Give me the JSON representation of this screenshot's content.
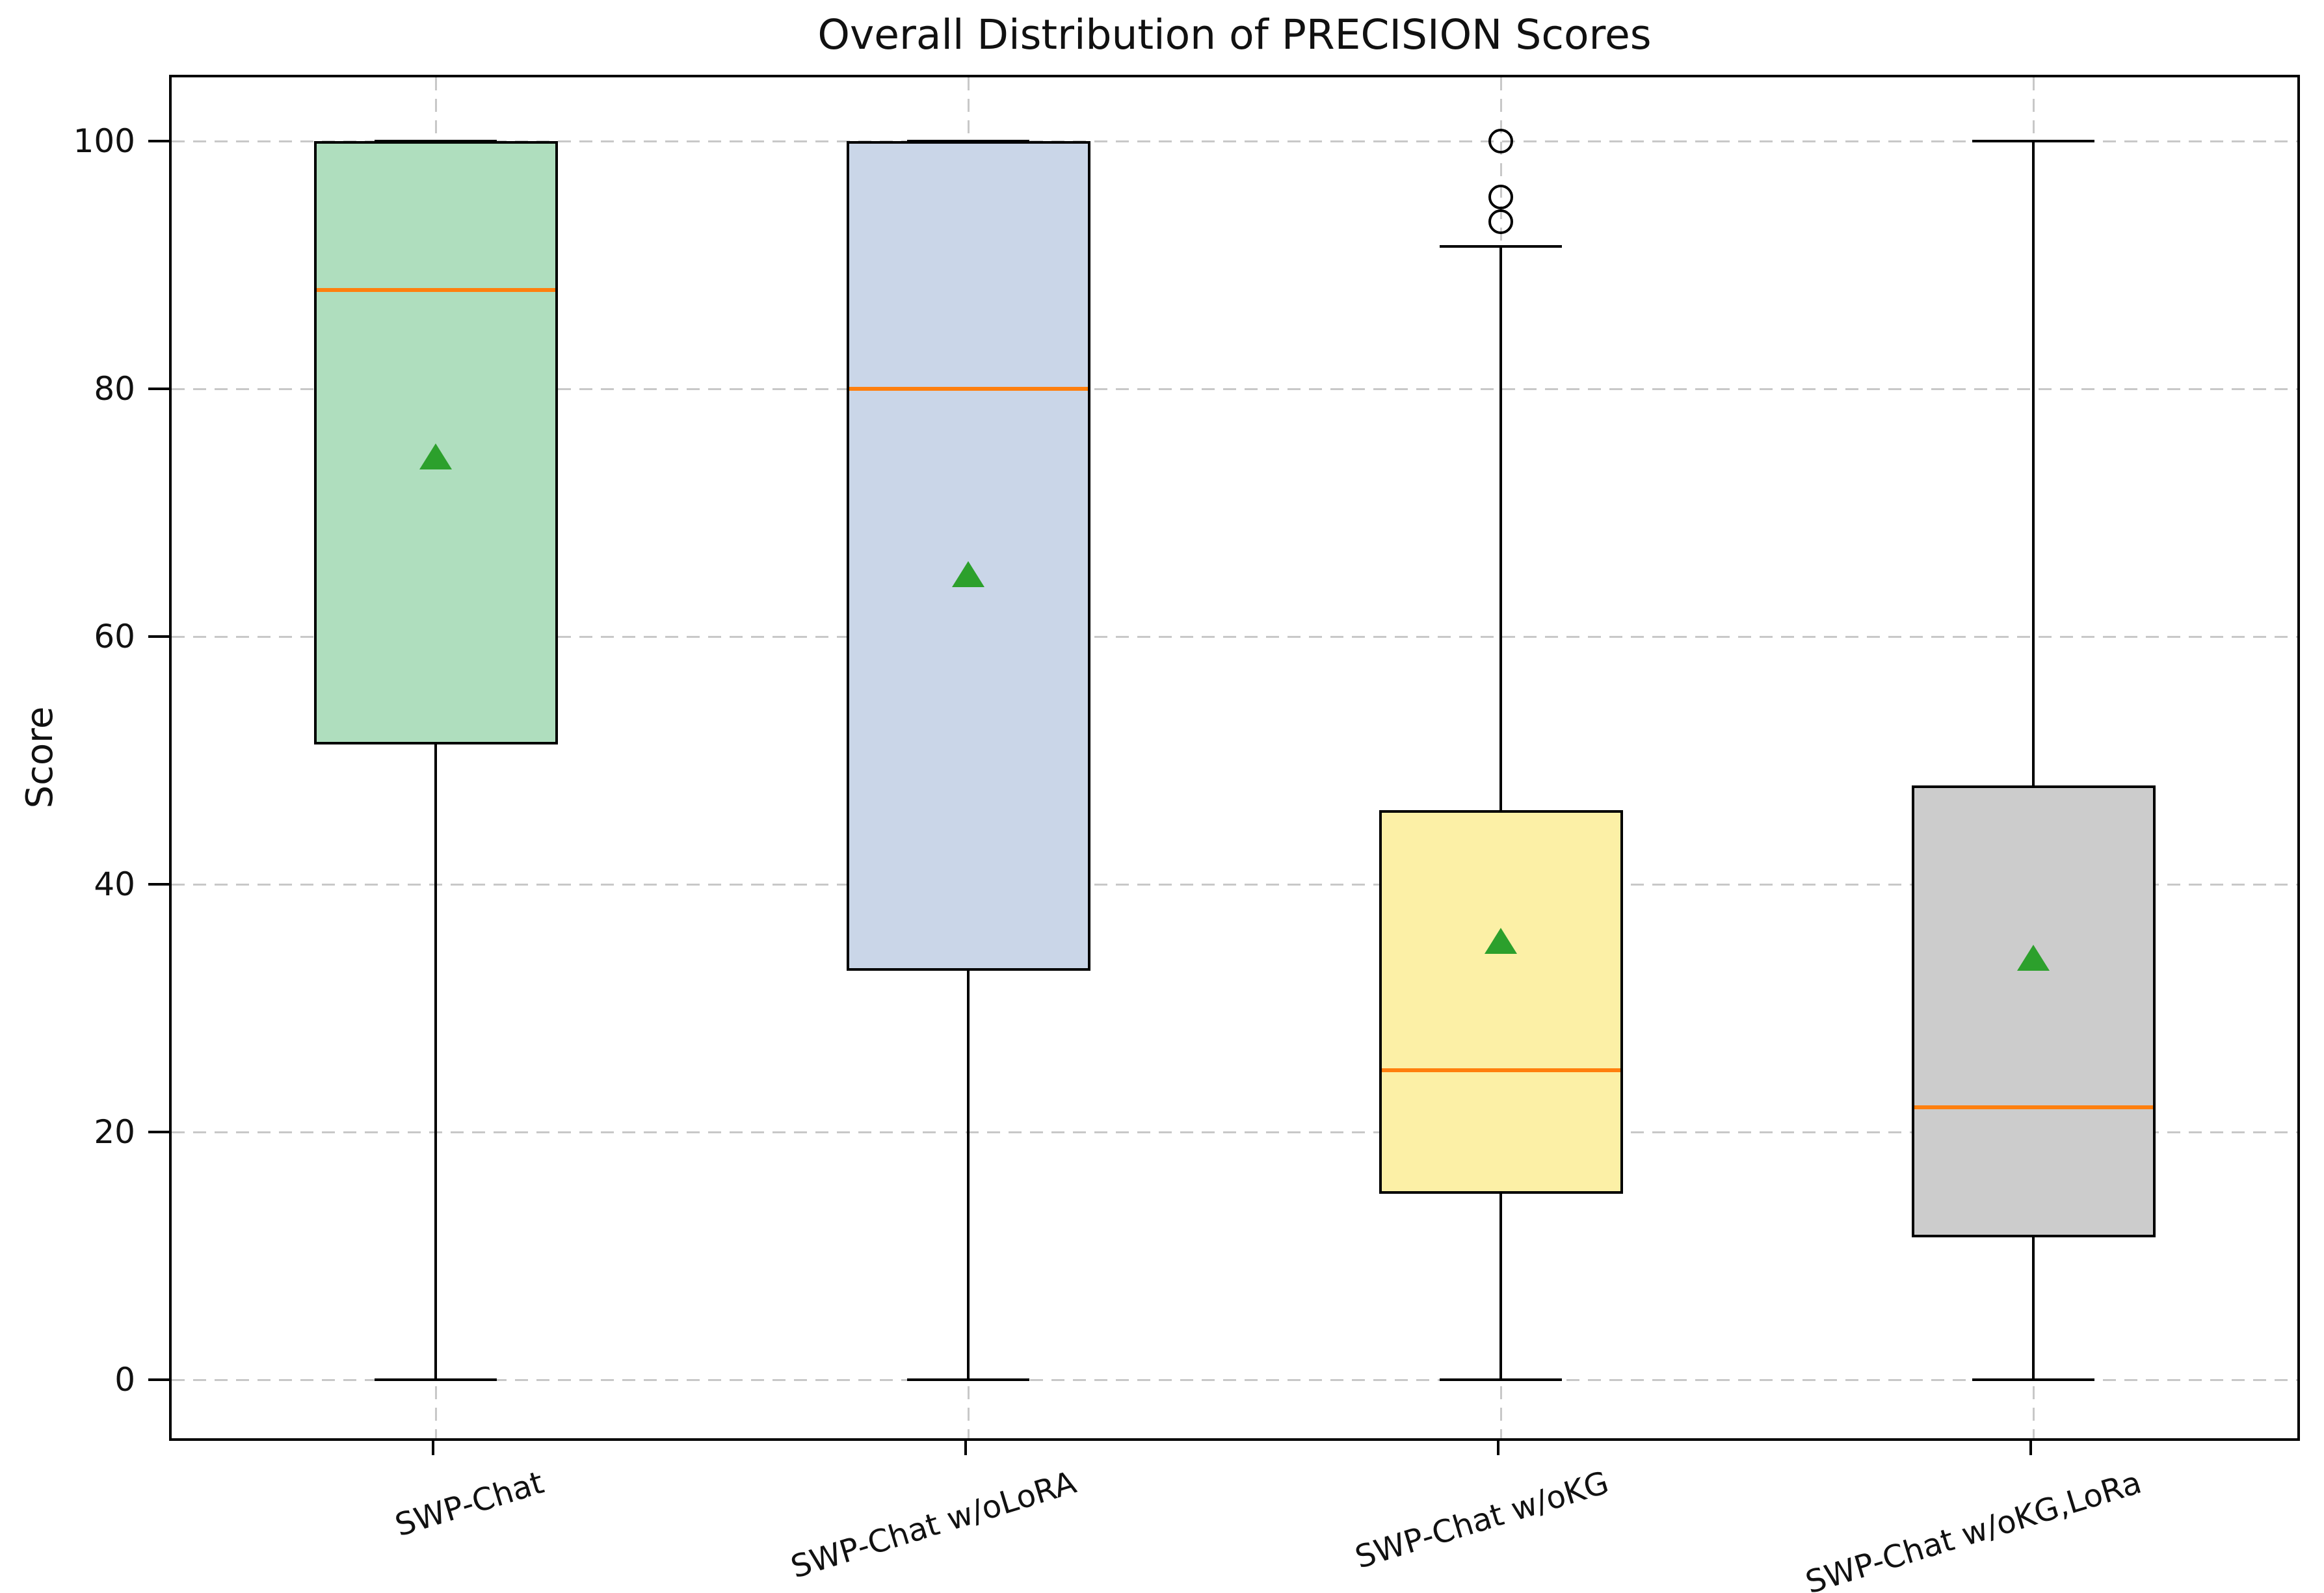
{
  "chart_data": {
    "type": "box",
    "title": "Overall Distribution of PRECISION Scores",
    "xlabel": "",
    "ylabel": "Score",
    "ylim": [
      -5,
      105
    ],
    "yticks": [
      0,
      20,
      40,
      60,
      80,
      100
    ],
    "grid": "dashed horizontal and vertical gridlines",
    "legend_position": "none",
    "categories": [
      "SWP-Chat",
      "SWP-Chat w/oLoRA",
      "SWP-Chat w/oKG",
      "SWP-Chat w/oKG,LoRa"
    ],
    "series": [
      {
        "name": "SWP-Chat",
        "fill_color": "#afdebe",
        "whisker_low": 0,
        "q1": 51.3,
        "median": 88,
        "q3": 100,
        "whisker_high": 100,
        "mean": 74.5,
        "outliers": []
      },
      {
        "name": "SWP-Chat w/oLoRA",
        "fill_color": "#cad6e8",
        "whisker_low": 0,
        "q1": 33,
        "median": 80,
        "q3": 100,
        "whisker_high": 100,
        "mean": 65,
        "outliers": []
      },
      {
        "name": "SWP-Chat w/oKG",
        "fill_color": "#fcf0a6",
        "whisker_low": 0,
        "q1": 15,
        "median": 25,
        "q3": 46,
        "whisker_high": 91.5,
        "mean": 35.4,
        "outliers": [
          93.5,
          95.5,
          100
        ]
      },
      {
        "name": "SWP-Chat w/oKG,LoRa",
        "fill_color": "#cccccc",
        "whisker_low": 0,
        "q1": 11.5,
        "median": 22,
        "q3": 48,
        "whisker_high": 100,
        "mean": 34,
        "outliers": []
      }
    ],
    "style": {
      "median_color": "#ff7f0e",
      "mean_color": "#2ca02c",
      "mean_marker": "triangle-up",
      "box_edge_color": "#000000",
      "grid_color": "#c8c8c8",
      "text_color": "#111111"
    }
  }
}
